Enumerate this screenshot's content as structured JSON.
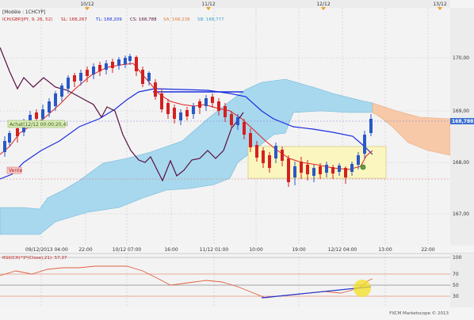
{
  "header": {
    "model_label": "[Modèle : 1CHCYP]",
    "ichimoku_name": "ICH(GBP/JPY, 9, 26, 52)",
    "sl_label": "SL: 168,267",
    "tl_label": "TL: 168,209",
    "cs_label": "CS: 168,788",
    "sa_label": "SA: 168,238",
    "sb_label": "SB: 168,777"
  },
  "colors": {
    "cloud": "#a8d8ee",
    "cloud_bear": "#f7c9a8",
    "tenkan": "#e02020",
    "kijun": "#1a2ee0",
    "chikou": "#5a1040",
    "bull": "#2a58c8",
    "bear": "#d42020",
    "price_tag_bg": "#3a6fcf",
    "highlight_box": "#fbf6bf",
    "rsi_line": "#e06040",
    "rsi_trend": "#2233cc",
    "rsi_circle": "#f3e020"
  },
  "top_dates": [
    "10/12",
    "11/12",
    "12/12",
    "13/12"
  ],
  "price_axis": [
    "170,00",
    "169,00",
    "168,00",
    "167,00"
  ],
  "current_price": "168,788",
  "time_axis": [
    "22:00",
    "10/12 07:00",
    "16:00",
    "11/12 01:00",
    "10:00",
    "19:00",
    "12/12 04:00",
    "13:00",
    "22:00"
  ],
  "bottom_left_date": "09/12/2013 04:00",
  "annotations": {
    "achat": "Achat(12/12 00:00;20,4)",
    "vente": "Vente"
  },
  "rsi": {
    "label": "RSI(ICH(*3*(Close),21): 57,37",
    "axis": [
      "100",
      "70",
      "50",
      "30"
    ]
  },
  "watermark": "FXCM Marketscope © 2013"
}
